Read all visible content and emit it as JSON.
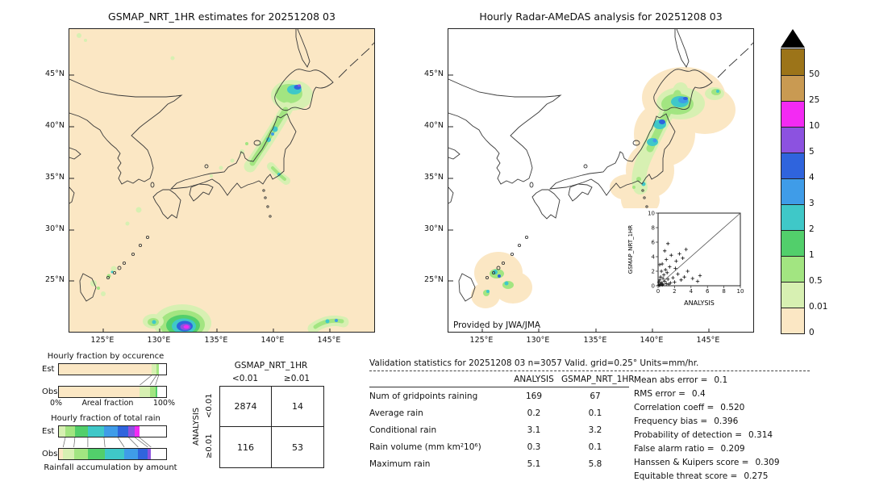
{
  "maps": {
    "left": {
      "title": "GSMAP_NRT_1HR estimates for 20251208 03"
    },
    "right": {
      "title": "Hourly Radar-AMeDAS analysis for 20251208 03",
      "credit": "Provided by JWA/JMA"
    },
    "lat_ticks": [
      "45°N",
      "40°N",
      "35°N",
      "30°N",
      "25°N"
    ],
    "lon_ticks": [
      "125°E",
      "130°E",
      "135°E",
      "140°E",
      "145°E"
    ]
  },
  "colorbar": {
    "units": "mm/hr",
    "entries": [
      {
        "label": "50",
        "color": "#9c7419"
      },
      {
        "label": "25",
        "color": "#c99a52"
      },
      {
        "label": "10",
        "color": "#f32af3"
      },
      {
        "label": "5",
        "color": "#8c52e0"
      },
      {
        "label": "4",
        "color": "#2f64dd"
      },
      {
        "label": "3",
        "color": "#3f9ce8"
      },
      {
        "label": "2",
        "color": "#3fc8c8"
      },
      {
        "label": "1",
        "color": "#52cf6b"
      },
      {
        "label": "0.5",
        "color": "#a2e581"
      },
      {
        "label": "0.01",
        "color": "#d7f0b2"
      },
      {
        "label": "0",
        "color": "#fbe7c4"
      }
    ]
  },
  "chart_data": [
    {
      "id": "occurrence_bars",
      "type": "bar",
      "title": "Hourly fraction by occurence",
      "orientation": "horizontal-stacked",
      "xlabel": "Areal fraction",
      "xlim_labels": [
        "0%",
        "100%"
      ],
      "rows": [
        {
          "name": "Est",
          "segments": [
            {
              "color": "#fbe7c4",
              "fraction": 0.865
            },
            {
              "color": "#d7f0b2",
              "fraction": 0.045
            },
            {
              "color": "#a2e581",
              "fraction": 0.02
            },
            {
              "color": "#ffffff",
              "fraction": 0.07
            }
          ]
        },
        {
          "name": "Obs",
          "segments": [
            {
              "color": "#fbe7c4",
              "fraction": 0.755
            },
            {
              "color": "#d7f0b2",
              "fraction": 0.095
            },
            {
              "color": "#a2e581",
              "fraction": 0.05
            },
            {
              "color": "#52cf6b",
              "fraction": 0.02
            },
            {
              "color": "#ffffff",
              "fraction": 0.08
            }
          ]
        }
      ]
    },
    {
      "id": "totalrain_bars",
      "type": "bar",
      "title": "Hourly fraction of total rain",
      "orientation": "horizontal-stacked",
      "caption": "Rainfall accumulation by amount",
      "rows": [
        {
          "name": "Est",
          "segments": [
            {
              "color": "#d7f0b2",
              "fraction": 0.06
            },
            {
              "color": "#a2e581",
              "fraction": 0.09
            },
            {
              "color": "#52cf6b",
              "fraction": 0.12
            },
            {
              "color": "#3fc8c8",
              "fraction": 0.15
            },
            {
              "color": "#3f9ce8",
              "fraction": 0.13
            },
            {
              "color": "#2f64dd",
              "fraction": 0.1
            },
            {
              "color": "#8c52e0",
              "fraction": 0.06
            },
            {
              "color": "#f32af3",
              "fraction": 0.04
            },
            {
              "color": "#ffffff",
              "fraction": 0.25
            }
          ]
        },
        {
          "name": "Obs",
          "segments": [
            {
              "color": "#fbe7c4",
              "fraction": 0.04
            },
            {
              "color": "#d7f0b2",
              "fraction": 0.1
            },
            {
              "color": "#a2e581",
              "fraction": 0.13
            },
            {
              "color": "#52cf6b",
              "fraction": 0.16
            },
            {
              "color": "#3fc8c8",
              "fraction": 0.18
            },
            {
              "color": "#3f9ce8",
              "fraction": 0.13
            },
            {
              "color": "#2f64dd",
              "fraction": 0.09
            },
            {
              "color": "#8c52e0",
              "fraction": 0.03
            },
            {
              "color": "#ffffff",
              "fraction": 0.14
            }
          ]
        }
      ]
    },
    {
      "id": "inset_scatter",
      "type": "scatter",
      "xlabel": "ANALYSIS",
      "ylabel": "GSMAP_NRT_1HR",
      "xlim": [
        0,
        10
      ],
      "ylim": [
        0,
        10
      ],
      "ticks": [
        0,
        2,
        4,
        6,
        8,
        10
      ],
      "marker": "+",
      "points": [
        [
          0.1,
          0.1
        ],
        [
          0.2,
          0.05
        ],
        [
          0.3,
          0.2
        ],
        [
          0.1,
          0.5
        ],
        [
          0.5,
          0.1
        ],
        [
          0.4,
          0.4
        ],
        [
          0.6,
          0.2
        ],
        [
          0.2,
          0.8
        ],
        [
          0.8,
          0.6
        ],
        [
          1.0,
          0.3
        ],
        [
          0.3,
          1.2
        ],
        [
          1.2,
          0.9
        ],
        [
          0.7,
          1.5
        ],
        [
          1.5,
          0.4
        ],
        [
          1.1,
          1.8
        ],
        [
          0.9,
          2.2
        ],
        [
          1.8,
          1.1
        ],
        [
          2.0,
          0.5
        ],
        [
          1.4,
          2.6
        ],
        [
          0.5,
          3.0
        ],
        [
          2.4,
          1.6
        ],
        [
          1.0,
          3.6
        ],
        [
          2.8,
          0.8
        ],
        [
          1.6,
          4.2
        ],
        [
          3.2,
          1.2
        ],
        [
          0.8,
          4.8
        ],
        [
          2.2,
          3.4
        ],
        [
          3.6,
          2.0
        ],
        [
          1.2,
          5.8
        ],
        [
          4.2,
          1.0
        ],
        [
          2.6,
          4.4
        ],
        [
          4.8,
          0.6
        ],
        [
          3.0,
          3.8
        ],
        [
          5.1,
          1.4
        ],
        [
          3.4,
          5.0
        ],
        [
          0.4,
          2.0
        ],
        [
          0.6,
          1.0
        ],
        [
          1.3,
          0.2
        ],
        [
          2.1,
          2.4
        ],
        [
          0.2,
          2.9
        ]
      ]
    },
    {
      "id": "contingency_table",
      "type": "table",
      "col_group": "GSMAP_NRT_1HR",
      "row_group": "ANALYSIS",
      "col_labels": [
        "<0.01",
        "≥0.01"
      ],
      "row_labels": [
        "<0.01",
        "≥0.01"
      ],
      "values": [
        [
          2874,
          14
        ],
        [
          116,
          53
        ]
      ]
    },
    {
      "id": "validation_stats",
      "type": "table",
      "title": "Validation statistics for 20251208 03  n=3057 Valid. grid=0.25° Units=mm/hr.",
      "columns": [
        "ANALYSIS",
        "GSMAP_NRT_1HR"
      ],
      "rows": [
        {
          "label": "Num of gridpoints raining",
          "values": [
            "169",
            "67"
          ]
        },
        {
          "label": "Average rain",
          "values": [
            "0.2",
            "0.1"
          ]
        },
        {
          "label": "Conditional rain",
          "values": [
            "3.1",
            "3.2"
          ]
        },
        {
          "label": "Rain volume (mm km²10⁶)",
          "values": [
            "0.3",
            "0.1"
          ]
        },
        {
          "label": "Maximum rain",
          "values": [
            "5.1",
            "5.8"
          ]
        }
      ],
      "metrics": [
        {
          "label": "Mean abs error =",
          "value": "0.1"
        },
        {
          "label": "RMS error =",
          "value": "0.4"
        },
        {
          "label": "Correlation coeff =",
          "value": "0.520"
        },
        {
          "label": "Frequency bias =",
          "value": "0.396"
        },
        {
          "label": "Probability of detection =",
          "value": "0.314"
        },
        {
          "label": "False alarm ratio =",
          "value": "0.209"
        },
        {
          "label": "Hanssen & Kuipers score =",
          "value": "0.309"
        },
        {
          "label": "Equitable threat score =",
          "value": "0.275"
        }
      ]
    }
  ]
}
